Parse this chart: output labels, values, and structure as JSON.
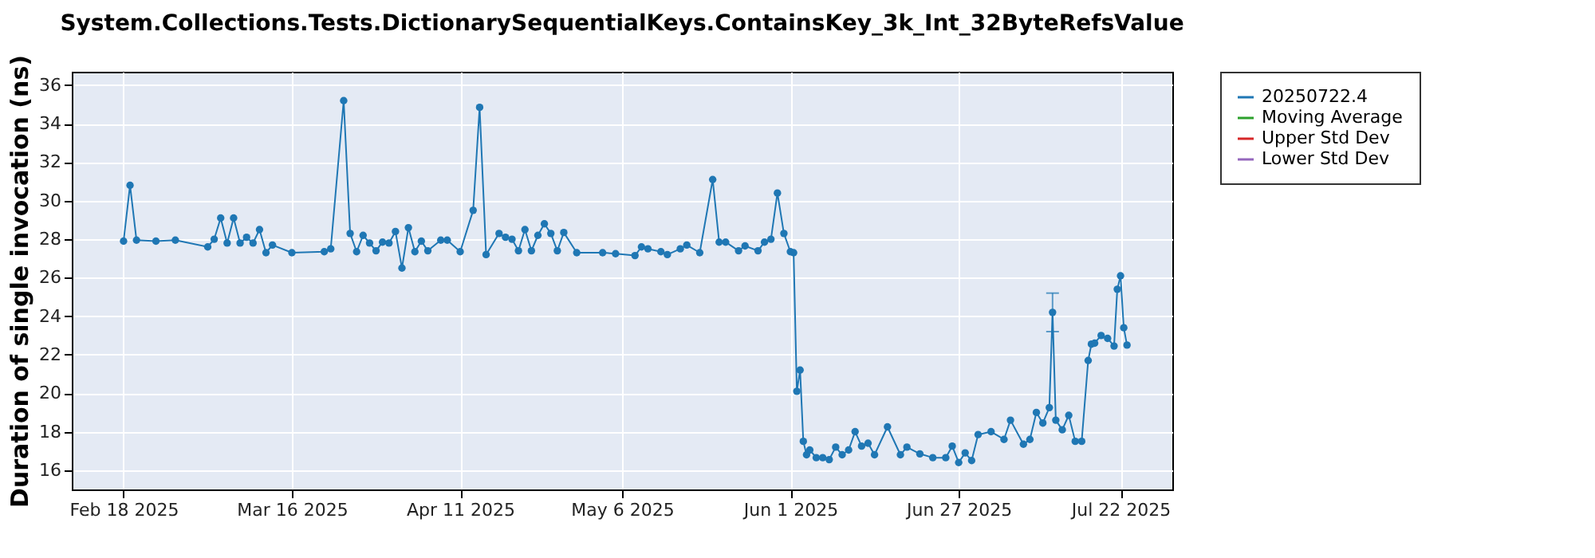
{
  "chart_data": {
    "type": "line",
    "title": "System.Collections.Tests.DictionarySequentialKeys.ContainsKey_3k_Int_32ByteRefsValue",
    "ylabel": "Duration of single invocation (ns)",
    "x": [
      "2025-02-18",
      "2025-02-19",
      "2025-02-20",
      "2025-02-23",
      "2025-02-26",
      "2025-03-03",
      "2025-03-04",
      "2025-03-05",
      "2025-03-06",
      "2025-03-07",
      "2025-03-08",
      "2025-03-09",
      "2025-03-10",
      "2025-03-11",
      "2025-03-12",
      "2025-03-13",
      "2025-03-16",
      "2025-03-21",
      "2025-03-22",
      "2025-03-24",
      "2025-03-25",
      "2025-03-26",
      "2025-03-27",
      "2025-03-28",
      "2025-03-29",
      "2025-03-30",
      "2025-03-31",
      "2025-04-01",
      "2025-04-02",
      "2025-04-03",
      "2025-04-04",
      "2025-04-05",
      "2025-04-06",
      "2025-04-08",
      "2025-04-09",
      "2025-04-11",
      "2025-04-13",
      "2025-04-14",
      "2025-04-15",
      "2025-04-17",
      "2025-04-18",
      "2025-04-19",
      "2025-04-20",
      "2025-04-21",
      "2025-04-22",
      "2025-04-23",
      "2025-04-24",
      "2025-04-25",
      "2025-04-26",
      "2025-04-27",
      "2025-04-29",
      "2025-05-03",
      "2025-05-05",
      "2025-05-08",
      "2025-05-09",
      "2025-05-10",
      "2025-05-12",
      "2025-05-13",
      "2025-05-15",
      "2025-05-16",
      "2025-05-18",
      "2025-05-20",
      "2025-05-21",
      "2025-05-22",
      "2025-05-24",
      "2025-05-25",
      "2025-05-27",
      "2025-05-28",
      "2025-05-29",
      "2025-05-30",
      "2025-05-31",
      "2025-06-01",
      "2025-06-01T12:00",
      "2025-06-02",
      "2025-06-02T12:00",
      "2025-06-03",
      "2025-06-03T12:00",
      "2025-06-04",
      "2025-06-05",
      "2025-06-06",
      "2025-06-07",
      "2025-06-08",
      "2025-06-09",
      "2025-06-10",
      "2025-06-11",
      "2025-06-12",
      "2025-06-13",
      "2025-06-14",
      "2025-06-16",
      "2025-06-18",
      "2025-06-19",
      "2025-06-21",
      "2025-06-23",
      "2025-06-25",
      "2025-06-26",
      "2025-06-27",
      "2025-06-28",
      "2025-06-29",
      "2025-06-30",
      "2025-07-02",
      "2025-07-04",
      "2025-07-05",
      "2025-07-07",
      "2025-07-08",
      "2025-07-09",
      "2025-07-10",
      "2025-07-11",
      "2025-07-11T12:00",
      "2025-07-12",
      "2025-07-13",
      "2025-07-14",
      "2025-07-15",
      "2025-07-16",
      "2025-07-17",
      "2025-07-17T12:00",
      "2025-07-18",
      "2025-07-19",
      "2025-07-20",
      "2025-07-21",
      "2025-07-21T12:00",
      "2025-07-22",
      "2025-07-22T12:00",
      "2025-07-23"
    ],
    "series": [
      {
        "name": "20250722.4",
        "color": "#1f77b4",
        "values": [
          27.9,
          30.8,
          27.95,
          27.9,
          27.95,
          27.6,
          28.0,
          29.1,
          27.8,
          29.1,
          27.8,
          28.1,
          27.8,
          28.5,
          27.3,
          27.7,
          27.3,
          27.35,
          27.5,
          35.2,
          28.3,
          27.35,
          28.2,
          27.8,
          27.4,
          27.85,
          27.8,
          28.4,
          26.5,
          28.6,
          27.35,
          27.9,
          27.4,
          27.95,
          27.95,
          27.35,
          29.5,
          34.85,
          27.2,
          28.3,
          28.1,
          28.0,
          27.4,
          28.5,
          27.4,
          28.2,
          28.8,
          28.3,
          27.4,
          28.35,
          27.3,
          27.3,
          27.25,
          27.15,
          27.6,
          27.5,
          27.35,
          27.2,
          27.5,
          27.7,
          27.3,
          31.1,
          27.85,
          27.85,
          27.4,
          27.65,
          27.4,
          27.85,
          28.0,
          30.4,
          28.3,
          27.35,
          27.3,
          20.1,
          21.2,
          17.5,
          16.8,
          17.05,
          16.65,
          16.65,
          16.55,
          17.2,
          16.8,
          17.05,
          18.0,
          17.25,
          17.4,
          16.8,
          18.25,
          16.8,
          17.2,
          16.85,
          16.65,
          16.65,
          17.25,
          16.4,
          16.9,
          16.5,
          17.85,
          18.0,
          17.6,
          18.6,
          17.35,
          17.6,
          19.0,
          18.45,
          19.25,
          24.2,
          18.6,
          18.1,
          18.85,
          17.5,
          17.5,
          21.7,
          22.55,
          22.6,
          23.0,
          22.85,
          22.45,
          25.4,
          26.1,
          23.4,
          22.5
        ],
        "errors": [
          null,
          null,
          null,
          null,
          null,
          null,
          null,
          null,
          null,
          null,
          null,
          null,
          null,
          null,
          null,
          null,
          null,
          null,
          null,
          null,
          null,
          null,
          null,
          null,
          null,
          null,
          null,
          null,
          null,
          null,
          null,
          null,
          null,
          null,
          null,
          null,
          null,
          null,
          null,
          null,
          null,
          null,
          null,
          null,
          null,
          null,
          null,
          null,
          null,
          null,
          null,
          null,
          null,
          null,
          null,
          null,
          null,
          null,
          null,
          null,
          null,
          null,
          null,
          null,
          null,
          null,
          null,
          null,
          null,
          null,
          null,
          null,
          null,
          null,
          null,
          null,
          null,
          null,
          null,
          null,
          null,
          null,
          null,
          null,
          null,
          null,
          null,
          null,
          null,
          null,
          null,
          null,
          null,
          null,
          null,
          null,
          null,
          null,
          null,
          null,
          null,
          null,
          null,
          null,
          null,
          null,
          null,
          [
            23.2,
            25.2
          ],
          null,
          null,
          null,
          null,
          null,
          null,
          null,
          null,
          null,
          null,
          null,
          null,
          null,
          null,
          null
        ]
      },
      {
        "name": "Moving Average",
        "color": "#2ca02c",
        "values": [
          null,
          null,
          null,
          null,
          null,
          null,
          null,
          null,
          null,
          null,
          null,
          null,
          null,
          null,
          null,
          null,
          null,
          null,
          null,
          null,
          null,
          null,
          null,
          null,
          null,
          null,
          null,
          null,
          null,
          null,
          null,
          null,
          null,
          null,
          null,
          null,
          null,
          null,
          null,
          null,
          null,
          null,
          null,
          null,
          null,
          null,
          null,
          null,
          null,
          null,
          null,
          null,
          null,
          null,
          null,
          null,
          null,
          null,
          null,
          null,
          null,
          null,
          null,
          null,
          null,
          null,
          null,
          null,
          null,
          null,
          null,
          null,
          null,
          null,
          null,
          null,
          null,
          null,
          null,
          null,
          null,
          null,
          null,
          null,
          null,
          null,
          null,
          null,
          null,
          null,
          null,
          null,
          null,
          null,
          null,
          null,
          null,
          null,
          null,
          null,
          null,
          null,
          null,
          null,
          null,
          null,
          null,
          null,
          null,
          null,
          null,
          null,
          null,
          null,
          null,
          null,
          null,
          null,
          null,
          null,
          null,
          null,
          null
        ]
      },
      {
        "name": "Upper Std Dev",
        "color": "#d62728",
        "values": [
          null,
          null,
          null,
          null,
          null,
          null,
          null,
          null,
          null,
          null,
          null,
          null,
          null,
          null,
          null,
          null,
          null,
          null,
          null,
          null,
          null,
          null,
          null,
          null,
          null,
          null,
          null,
          null,
          null,
          null,
          null,
          null,
          null,
          null,
          null,
          null,
          null,
          null,
          null,
          null,
          null,
          null,
          null,
          null,
          null,
          null,
          null,
          null,
          null,
          null,
          null,
          null,
          null,
          null,
          null,
          null,
          null,
          null,
          null,
          null,
          null,
          null,
          null,
          null,
          null,
          null,
          null,
          null,
          null,
          null,
          null,
          null,
          null,
          null,
          null,
          null,
          null,
          null,
          null,
          null,
          null,
          null,
          null,
          null,
          null,
          null,
          null,
          null,
          null,
          null,
          null,
          null,
          null,
          null,
          null,
          null,
          null,
          null,
          null,
          null,
          null,
          null,
          null,
          null,
          null,
          null,
          null,
          null,
          null,
          null,
          null,
          null,
          null,
          null,
          null,
          null,
          null,
          null,
          null,
          null,
          null,
          null,
          null
        ]
      },
      {
        "name": "Lower Std Dev",
        "color": "#9467bd",
        "values": [
          null,
          null,
          null,
          null,
          null,
          null,
          null,
          null,
          null,
          null,
          null,
          null,
          null,
          null,
          null,
          null,
          null,
          null,
          null,
          null,
          null,
          null,
          null,
          null,
          null,
          null,
          null,
          null,
          null,
          null,
          null,
          null,
          null,
          null,
          null,
          null,
          null,
          null,
          null,
          null,
          null,
          null,
          null,
          null,
          null,
          null,
          null,
          null,
          null,
          null,
          null,
          null,
          null,
          null,
          null,
          null,
          null,
          null,
          null,
          null,
          null,
          null,
          null,
          null,
          null,
          null,
          null,
          null,
          null,
          null,
          null,
          null,
          null,
          null,
          null,
          null,
          null,
          null,
          null,
          null,
          null,
          null,
          null,
          null,
          null,
          null,
          null,
          null,
          null,
          null,
          null,
          null,
          null,
          null,
          null,
          null,
          null,
          null,
          null,
          null,
          null,
          null,
          null,
          null,
          null,
          null,
          null,
          null,
          null,
          null,
          null,
          null,
          null,
          null,
          null,
          null,
          null,
          null,
          null,
          null,
          null,
          null,
          null
        ]
      }
    ],
    "xlim": [
      "2025-02-10",
      "2025-07-30"
    ],
    "xticks": [
      {
        "value": "2025-02-18",
        "label": "Feb 18 2025"
      },
      {
        "value": "2025-03-16",
        "label": "Mar 16 2025"
      },
      {
        "value": "2025-04-11",
        "label": "Apr 11 2025"
      },
      {
        "value": "2025-05-06",
        "label": "May 6 2025"
      },
      {
        "value": "2025-06-01",
        "label": "Jun 1 2025"
      },
      {
        "value": "2025-06-27",
        "label": "Jun 27 2025"
      },
      {
        "value": "2025-07-22",
        "label": "Jul 22 2025"
      }
    ],
    "ylim": [
      15,
      36.7
    ],
    "yticks": [
      16,
      18,
      20,
      22,
      24,
      26,
      28,
      30,
      32,
      34,
      36
    ],
    "grid": true,
    "legend": "right",
    "marker": "circle",
    "line_style": "solid"
  }
}
